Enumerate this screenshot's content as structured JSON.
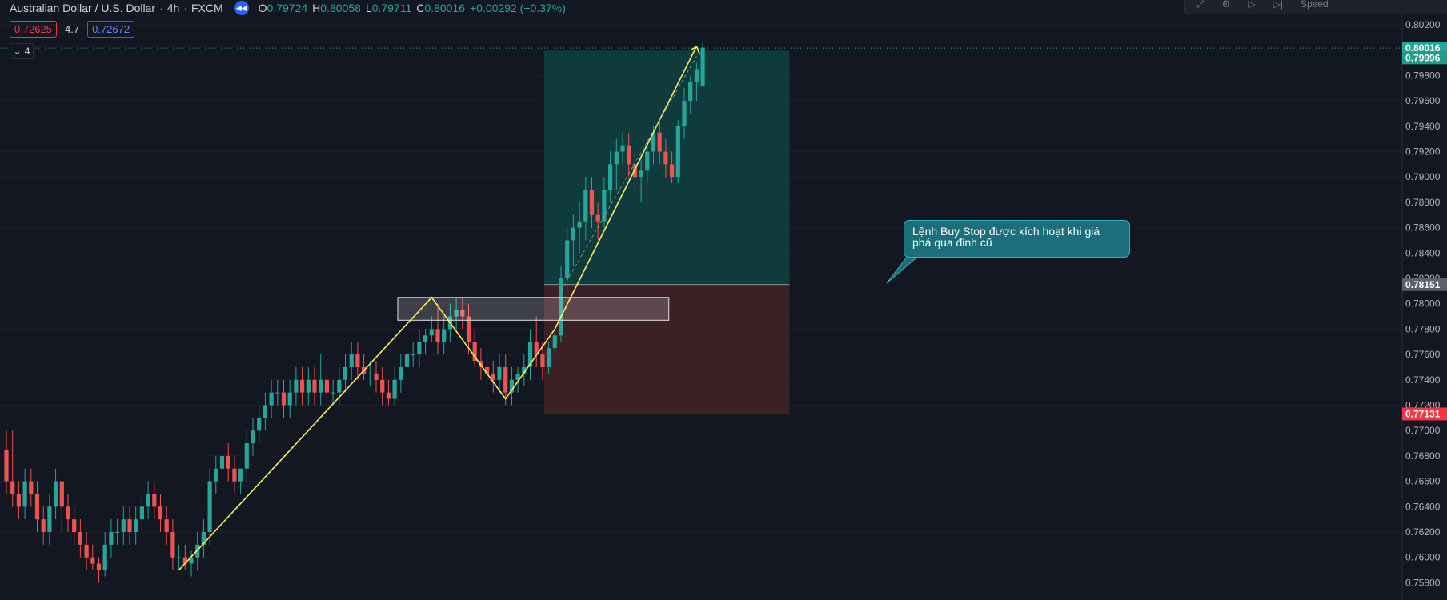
{
  "header": {
    "symbol": "Australian Dollar / U.S. Dollar",
    "interval": "4h",
    "exchange": "FXCM",
    "replay_icon": "rewind-icon",
    "ohlc": {
      "o_label": "O",
      "o": "0.79724",
      "h_label": "H",
      "h": "0.80058",
      "l_label": "L",
      "l": "0.79711",
      "c_label": "C",
      "c": "0.80016",
      "change": "+0.00292 (+0.37%)"
    }
  },
  "quotes": {
    "sell": "0.72625",
    "spread": "4.7",
    "buy": "0.72672"
  },
  "indicators_toggle": {
    "icon": "chevron-down-icon",
    "count": "4"
  },
  "topbar": {
    "speed_label": "Speed"
  },
  "annotation": {
    "text": "Lệnh Buy Stop được kích hoạt khi giá phá qua đỉnh cũ"
  },
  "colors": {
    "background": "#131722",
    "bullish": "#26a69a",
    "bearish": "#ef5350",
    "zigzag": "#ffee58",
    "profit_zone": "#0f3d3e",
    "loss_zone": "#3d2127",
    "callout": "#1a6f7a"
  },
  "chart_data": {
    "type": "candlestick",
    "ylim": [
      0.757,
      0.803
    ],
    "y_ticks": [
      "0.80200",
      "0.80000",
      "0.79800",
      "0.79600",
      "0.79400",
      "0.79200",
      "0.79000",
      "0.78800",
      "0.78600",
      "0.78400",
      "0.78200",
      "0.78000",
      "0.77800",
      "0.77600",
      "0.77400",
      "0.77200",
      "0.77000",
      "0.76800",
      "0.76600",
      "0.76400",
      "0.76200",
      "0.76000",
      "0.75800"
    ],
    "price_labels": [
      {
        "value": "0.80016",
        "kind": "last"
      },
      {
        "value": "0.79996",
        "kind": "last-alt"
      },
      {
        "value": "0.78151",
        "kind": "entry"
      },
      {
        "value": "0.77131",
        "kind": "stop"
      }
    ],
    "candles": [
      [
        0.7685,
        0.77,
        0.765,
        0.766
      ],
      [
        0.766,
        0.77,
        0.764,
        0.765
      ],
      [
        0.765,
        0.766,
        0.763,
        0.764
      ],
      [
        0.764,
        0.767,
        0.763,
        0.766
      ],
      [
        0.766,
        0.767,
        0.764,
        0.765
      ],
      [
        0.765,
        0.766,
        0.762,
        0.763
      ],
      [
        0.763,
        0.764,
        0.761,
        0.762
      ],
      [
        0.762,
        0.765,
        0.761,
        0.764
      ],
      [
        0.764,
        0.767,
        0.763,
        0.766
      ],
      [
        0.766,
        0.766,
        0.762,
        0.764
      ],
      [
        0.764,
        0.765,
        0.762,
        0.763
      ],
      [
        0.763,
        0.764,
        0.761,
        0.762
      ],
      [
        0.762,
        0.763,
        0.76,
        0.761
      ],
      [
        0.761,
        0.762,
        0.759,
        0.76
      ],
      [
        0.76,
        0.761,
        0.759,
        0.7595
      ],
      [
        0.7595,
        0.76,
        0.758,
        0.759
      ],
      [
        0.759,
        0.762,
        0.7585,
        0.761
      ],
      [
        0.761,
        0.763,
        0.76,
        0.762
      ],
      [
        0.762,
        0.763,
        0.761,
        0.762
      ],
      [
        0.762,
        0.764,
        0.761,
        0.763
      ],
      [
        0.763,
        0.764,
        0.761,
        0.762
      ],
      [
        0.762,
        0.764,
        0.761,
        0.763
      ],
      [
        0.763,
        0.765,
        0.762,
        0.764
      ],
      [
        0.764,
        0.766,
        0.763,
        0.765
      ],
      [
        0.765,
        0.766,
        0.763,
        0.764
      ],
      [
        0.764,
        0.765,
        0.762,
        0.763
      ],
      [
        0.763,
        0.764,
        0.761,
        0.762
      ],
      [
        0.762,
        0.763,
        0.759,
        0.76
      ],
      [
        0.76,
        0.761,
        0.759,
        0.76
      ],
      [
        0.76,
        0.761,
        0.759,
        0.7595
      ],
      [
        0.7595,
        0.7605,
        0.7585,
        0.76
      ],
      [
        0.76,
        0.762,
        0.759,
        0.761
      ],
      [
        0.761,
        0.763,
        0.76,
        0.762
      ],
      [
        0.762,
        0.767,
        0.761,
        0.766
      ],
      [
        0.766,
        0.768,
        0.765,
        0.767
      ],
      [
        0.767,
        0.768,
        0.766,
        0.768
      ],
      [
        0.768,
        0.769,
        0.766,
        0.767
      ],
      [
        0.767,
        0.768,
        0.765,
        0.766
      ],
      [
        0.766,
        0.767,
        0.765,
        0.767
      ],
      [
        0.767,
        0.77,
        0.766,
        0.769
      ],
      [
        0.769,
        0.771,
        0.768,
        0.77
      ],
      [
        0.77,
        0.772,
        0.769,
        0.771
      ],
      [
        0.771,
        0.773,
        0.77,
        0.772
      ],
      [
        0.772,
        0.774,
        0.771,
        0.773
      ],
      [
        0.773,
        0.774,
        0.772,
        0.773
      ],
      [
        0.773,
        0.774,
        0.771,
        0.772
      ],
      [
        0.772,
        0.774,
        0.771,
        0.773
      ],
      [
        0.773,
        0.775,
        0.772,
        0.774
      ],
      [
        0.774,
        0.775,
        0.772,
        0.773
      ],
      [
        0.773,
        0.775,
        0.772,
        0.774
      ],
      [
        0.774,
        0.775,
        0.772,
        0.773
      ],
      [
        0.773,
        0.776,
        0.772,
        0.774
      ],
      [
        0.774,
        0.775,
        0.772,
        0.773
      ],
      [
        0.773,
        0.774,
        0.772,
        0.773
      ],
      [
        0.773,
        0.775,
        0.772,
        0.774
      ],
      [
        0.774,
        0.776,
        0.773,
        0.775
      ],
      [
        0.775,
        0.777,
        0.774,
        0.776
      ],
      [
        0.776,
        0.777,
        0.774,
        0.775
      ],
      [
        0.775,
        0.776,
        0.774,
        0.7745
      ],
      [
        0.7745,
        0.7755,
        0.7735,
        0.7745
      ],
      [
        0.7745,
        0.7755,
        0.773,
        0.774
      ],
      [
        0.774,
        0.775,
        0.772,
        0.773
      ],
      [
        0.773,
        0.774,
        0.772,
        0.7725
      ],
      [
        0.7725,
        0.775,
        0.772,
        0.774
      ],
      [
        0.774,
        0.776,
        0.773,
        0.775
      ],
      [
        0.775,
        0.777,
        0.774,
        0.776
      ],
      [
        0.776,
        0.777,
        0.775,
        0.776
      ],
      [
        0.776,
        0.778,
        0.775,
        0.777
      ],
      [
        0.777,
        0.778,
        0.776,
        0.7775
      ],
      [
        0.7775,
        0.779,
        0.777,
        0.778
      ],
      [
        0.778,
        0.78,
        0.776,
        0.777
      ],
      [
        0.777,
        0.779,
        0.776,
        0.778
      ],
      [
        0.778,
        0.78,
        0.777,
        0.779
      ],
      [
        0.779,
        0.7805,
        0.778,
        0.7795
      ],
      [
        0.7795,
        0.7805,
        0.778,
        0.779
      ],
      [
        0.779,
        0.78,
        0.776,
        0.777
      ],
      [
        0.777,
        0.778,
        0.775,
        0.7755
      ],
      [
        0.7755,
        0.7765,
        0.774,
        0.775
      ],
      [
        0.775,
        0.776,
        0.774,
        0.7745
      ],
      [
        0.7745,
        0.7755,
        0.773,
        0.774
      ],
      [
        0.774,
        0.776,
        0.773,
        0.775
      ],
      [
        0.775,
        0.776,
        0.772,
        0.773
      ],
      [
        0.773,
        0.775,
        0.772,
        0.774
      ],
      [
        0.774,
        0.775,
        0.773,
        0.7745
      ],
      [
        0.7745,
        0.776,
        0.7735,
        0.775
      ],
      [
        0.775,
        0.778,
        0.774,
        0.777
      ],
      [
        0.777,
        0.779,
        0.775,
        0.776
      ],
      [
        0.776,
        0.777,
        0.774,
        0.775
      ],
      [
        0.775,
        0.777,
        0.7745,
        0.7765
      ],
      [
        0.7765,
        0.778,
        0.776,
        0.7775
      ],
      [
        0.7775,
        0.783,
        0.777,
        0.782
      ],
      [
        0.782,
        0.786,
        0.781,
        0.785
      ],
      [
        0.785,
        0.787,
        0.783,
        0.786
      ],
      [
        0.786,
        0.788,
        0.784,
        0.7865
      ],
      [
        0.7865,
        0.79,
        0.785,
        0.789
      ],
      [
        0.789,
        0.79,
        0.786,
        0.787
      ],
      [
        0.787,
        0.788,
        0.785,
        0.7865
      ],
      [
        0.7865,
        0.79,
        0.786,
        0.789
      ],
      [
        0.789,
        0.792,
        0.788,
        0.791
      ],
      [
        0.791,
        0.793,
        0.789,
        0.792
      ],
      [
        0.792,
        0.7935,
        0.791,
        0.7925
      ],
      [
        0.7925,
        0.7935,
        0.79,
        0.791
      ],
      [
        0.791,
        0.792,
        0.789,
        0.79
      ],
      [
        0.79,
        0.7915,
        0.788,
        0.7905
      ],
      [
        0.7905,
        0.793,
        0.7895,
        0.792
      ],
      [
        0.792,
        0.794,
        0.791,
        0.7935
      ],
      [
        0.7935,
        0.7945,
        0.791,
        0.792
      ],
      [
        0.792,
        0.793,
        0.79,
        0.791
      ],
      [
        0.791,
        0.792,
        0.7895,
        0.79
      ],
      [
        0.79,
        0.7945,
        0.7895,
        0.794
      ],
      [
        0.794,
        0.797,
        0.793,
        0.796
      ],
      [
        0.796,
        0.798,
        0.795,
        0.7975
      ],
      [
        0.7975,
        0.799,
        0.796,
        0.7985
      ],
      [
        0.7972,
        0.8006,
        0.7971,
        0.8002
      ]
    ],
    "zigzag": [
      [
        28,
        0.759
      ],
      [
        69,
        0.7805
      ],
      [
        81,
        0.7725
      ],
      [
        89,
        0.778
      ],
      [
        112,
        0.8003
      ]
    ],
    "breakout_box": {
      "i0": 63.5,
      "i1": 107.5,
      "top": 0.7805,
      "bottom": 0.7787
    },
    "position": {
      "i0": 88.3,
      "i1": 125,
      "entry": 0.78151,
      "target": 0.79996,
      "stop": 0.77131
    }
  }
}
